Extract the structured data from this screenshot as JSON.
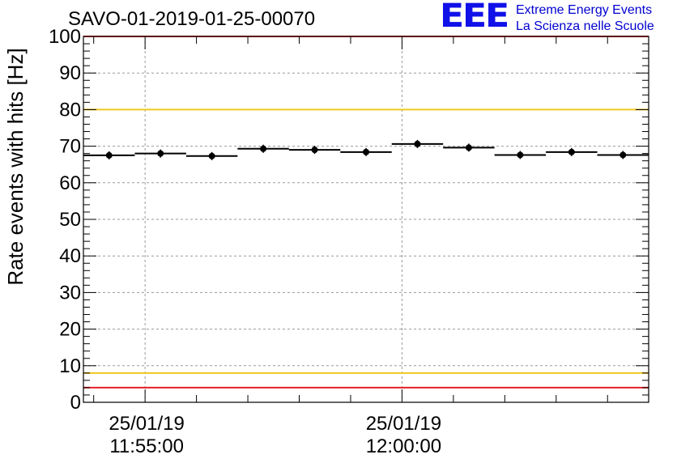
{
  "chart_data": {
    "type": "scatter",
    "title": "SAVO-01-2019-01-25-00070",
    "ylabel": "Rate events with hits [Hz]",
    "xlabel": "",
    "ylim": [
      0,
      100
    ],
    "yticks": [
      0,
      10,
      20,
      30,
      40,
      50,
      60,
      70,
      80,
      90,
      100
    ],
    "xlim_minutes": [
      -1.2,
      9.8
    ],
    "xticks": [
      {
        "minute": 0,
        "date": "25/01/19",
        "time": "11:55:00"
      },
      {
        "minute": 5,
        "date": "25/01/19",
        "time": "12:00:00"
      }
    ],
    "bin_width_minutes": 1,
    "x_bin_centers_minutes": [
      -0.7,
      0.3,
      1.3,
      2.3,
      3.3,
      4.3,
      5.3,
      6.3,
      7.3,
      8.3,
      9.3
    ],
    "values": [
      67.5,
      68.0,
      67.3,
      69.3,
      69.0,
      68.4,
      70.6,
      69.6,
      67.6,
      68.4,
      67.6
    ],
    "reference_lines": [
      {
        "name": "upper-limit",
        "value": 100,
        "color": "#e8202a"
      },
      {
        "name": "upper-warning",
        "value": 80,
        "color": "#f0c81e"
      },
      {
        "name": "lower-warning",
        "value": 8,
        "color": "#f0c81e"
      },
      {
        "name": "lower-limit",
        "value": 4,
        "color": "#e8202a"
      }
    ],
    "grid": true
  },
  "logo": {
    "letters": "EEE",
    "line1": "Extreme Energy Events",
    "line2": "La Scienza nelle Scuole"
  },
  "colors": {
    "logo": "#1010e8",
    "logo_text": "#0000d0"
  }
}
